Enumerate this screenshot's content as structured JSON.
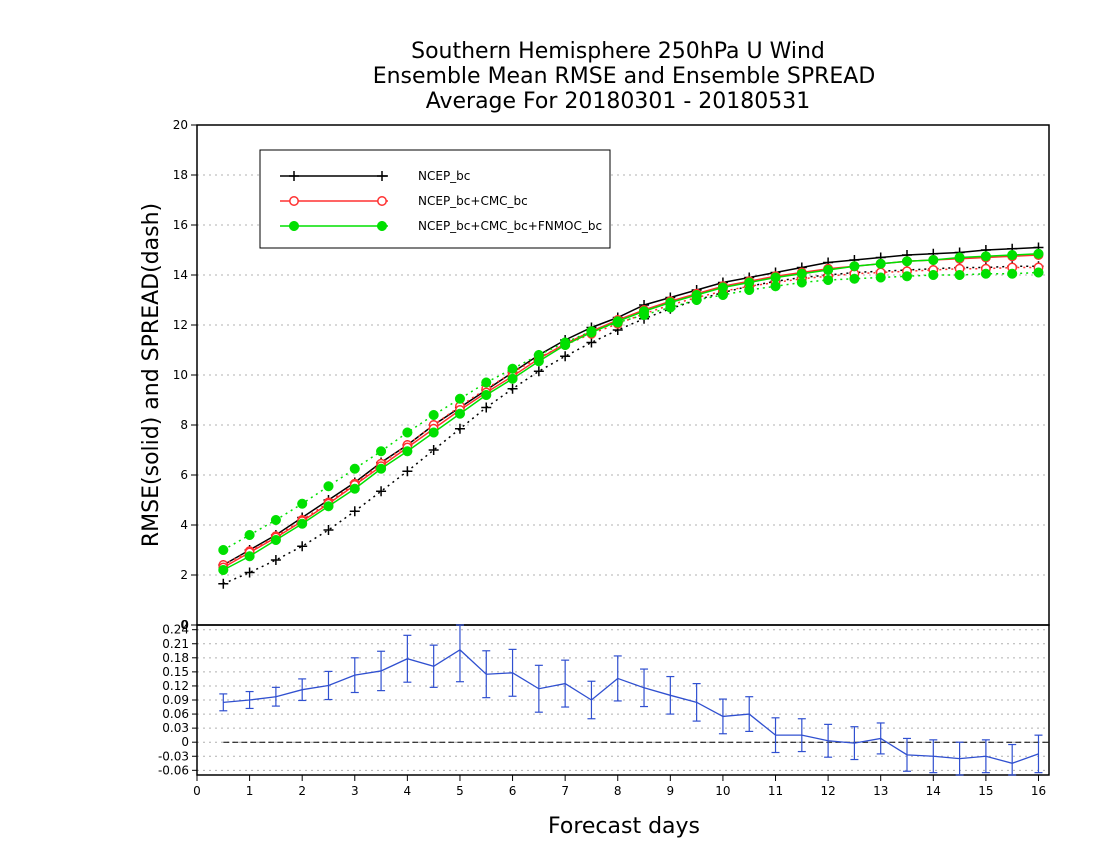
{
  "chart_data": [
    {
      "type": "line",
      "title": [
        "Southern Hemisphere 250hPa U Wind",
        "Ensemble Mean RMSE and Ensemble SPREAD",
        "Average For 20180301 - 20180531"
      ],
      "ylabel": "RMSE(solid) and SPREAD(dash)",
      "xlim": [
        0,
        16.2
      ],
      "ylim": [
        0,
        20
      ],
      "yticks": [
        0,
        2,
        4,
        6,
        8,
        10,
        12,
        14,
        16,
        18,
        20
      ],
      "grid": true,
      "legend_position": "top-left",
      "x": [
        0.5,
        1,
        1.5,
        2,
        2.5,
        3,
        3.5,
        4,
        4.5,
        5,
        5.5,
        6,
        6.5,
        7,
        7.5,
        8,
        8.5,
        9,
        9.5,
        10,
        10.5,
        11,
        11.5,
        12,
        12.5,
        13,
        13.5,
        14,
        14.5,
        15,
        15.5,
        16
      ],
      "series": [
        {
          "name": "NCEP_bc",
          "color": "#000000",
          "marker": "plus",
          "rmse": [
            2.4,
            3.0,
            3.6,
            4.3,
            5.0,
            5.7,
            6.5,
            7.2,
            8.0,
            8.7,
            9.4,
            10.1,
            10.8,
            11.4,
            11.9,
            12.3,
            12.8,
            13.1,
            13.4,
            13.7,
            13.9,
            14.1,
            14.3,
            14.5,
            14.6,
            14.7,
            14.8,
            14.85,
            14.9,
            15.0,
            15.05,
            15.1
          ],
          "spread": [
            1.65,
            2.1,
            2.6,
            3.15,
            3.8,
            4.55,
            5.35,
            6.15,
            7.0,
            7.85,
            8.7,
            9.45,
            10.15,
            10.75,
            11.3,
            11.8,
            12.25,
            12.65,
            13.0,
            13.3,
            13.55,
            13.75,
            13.9,
            14.0,
            14.1,
            14.15,
            14.2,
            14.25,
            14.3,
            14.3,
            14.35,
            14.35
          ]
        },
        {
          "name": "NCEP_bc+CMC_bc",
          "color": "#ff3030",
          "marker": "open-circle",
          "rmse": [
            2.3,
            2.9,
            3.5,
            4.15,
            4.85,
            5.6,
            6.35,
            7.1,
            7.85,
            8.6,
            9.3,
            9.95,
            10.65,
            11.25,
            11.75,
            12.2,
            12.6,
            12.95,
            13.25,
            13.55,
            13.75,
            13.95,
            14.1,
            14.25,
            14.35,
            14.45,
            14.55,
            14.6,
            14.65,
            14.7,
            14.75,
            14.8
          ],
          "spread": [
            2.4,
            2.95,
            3.55,
            4.2,
            4.9,
            5.65,
            6.45,
            7.2,
            8.0,
            8.75,
            9.45,
            10.1,
            10.7,
            11.2,
            11.65,
            12.05,
            12.45,
            12.8,
            13.1,
            13.35,
            13.55,
            13.7,
            13.85,
            13.95,
            14.05,
            14.1,
            14.15,
            14.2,
            14.25,
            14.25,
            14.3,
            14.3
          ]
        },
        {
          "name": "NCEP_bc+CMC_bc+FNMOC_bc",
          "color": "#00e000",
          "marker": "filled-circle",
          "rmse": [
            2.2,
            2.75,
            3.4,
            4.05,
            4.75,
            5.45,
            6.25,
            6.95,
            7.7,
            8.45,
            9.2,
            9.85,
            10.55,
            11.2,
            11.7,
            12.15,
            12.55,
            12.9,
            13.2,
            13.5,
            13.7,
            13.9,
            14.05,
            14.2,
            14.35,
            14.45,
            14.55,
            14.6,
            14.7,
            14.75,
            14.8,
            14.85
          ],
          "spread": [
            3.0,
            3.6,
            4.2,
            4.85,
            5.55,
            6.25,
            6.95,
            7.7,
            8.4,
            9.05,
            9.7,
            10.25,
            10.8,
            11.3,
            11.75,
            12.1,
            12.4,
            12.7,
            13.0,
            13.2,
            13.4,
            13.55,
            13.7,
            13.8,
            13.85,
            13.9,
            13.95,
            14.0,
            14.0,
            14.05,
            14.05,
            14.1
          ]
        }
      ]
    },
    {
      "type": "line",
      "subtype": "errorbar",
      "xlabel": "Forecast days",
      "xlim": [
        0,
        16.2
      ],
      "xticks": [
        0,
        1,
        2,
        3,
        4,
        5,
        6,
        7,
        8,
        9,
        10,
        11,
        12,
        13,
        14,
        15,
        16
      ],
      "ylim": [
        -0.07,
        0.25
      ],
      "yticks": [
        -0.06,
        -0.03,
        0,
        0.03,
        0.06,
        0.09,
        0.12,
        0.15,
        0.18,
        0.21,
        0.24
      ],
      "top_tick_label": "0",
      "grid": true,
      "reference_line": 0,
      "series": [
        {
          "color": "#3050d0",
          "x": [
            0.5,
            1,
            1.5,
            2,
            2.5,
            3,
            3.5,
            4,
            4.5,
            5,
            5.5,
            6,
            6.5,
            7,
            7.5,
            8,
            8.5,
            9,
            9.5,
            10,
            10.5,
            11,
            11.5,
            12,
            12.5,
            13,
            13.5,
            14,
            14.5,
            15,
            15.5,
            16
          ],
          "values": [
            0.085,
            0.09,
            0.097,
            0.112,
            0.121,
            0.143,
            0.152,
            0.178,
            0.162,
            0.197,
            0.145,
            0.148,
            0.114,
            0.125,
            0.09,
            0.136,
            0.116,
            0.1,
            0.085,
            0.055,
            0.06,
            0.015,
            0.015,
            0.003,
            -0.002,
            0.008,
            -0.027,
            -0.03,
            -0.035,
            -0.03,
            -0.045,
            -0.025
          ],
          "error": [
            0.018,
            0.018,
            0.02,
            0.023,
            0.03,
            0.037,
            0.042,
            0.05,
            0.045,
            0.068,
            0.05,
            0.05,
            0.05,
            0.05,
            0.04,
            0.048,
            0.04,
            0.04,
            0.04,
            0.037,
            0.037,
            0.037,
            0.035,
            0.035,
            0.035,
            0.033,
            0.035,
            0.035,
            0.035,
            0.035,
            0.04,
            0.04
          ]
        }
      ]
    }
  ]
}
